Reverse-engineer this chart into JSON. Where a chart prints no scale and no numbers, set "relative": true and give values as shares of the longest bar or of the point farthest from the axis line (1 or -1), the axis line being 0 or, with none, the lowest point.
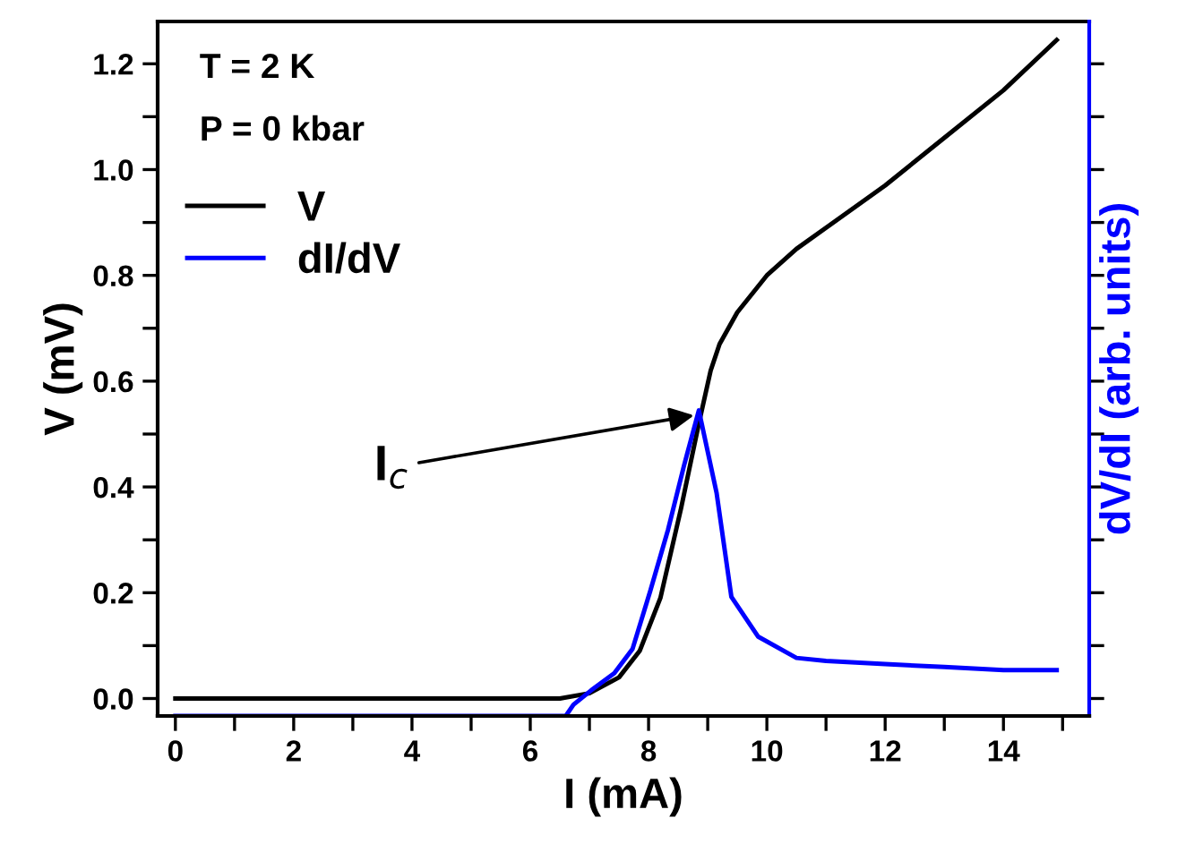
{
  "chart_data": [
    {
      "type": "line",
      "xlabel": "I (mA)",
      "ylabel": "V (mV)",
      "xlim": [
        -0.3,
        15.45
      ],
      "ylim": [
        -0.033,
        1.28
      ],
      "xticks": [
        0,
        {
          "value": 1,
          "label": null
        },
        2,
        {
          "value": 3,
          "label": null
        },
        4,
        {
          "value": 5,
          "label": null
        },
        6,
        {
          "value": 7,
          "label": null
        },
        8,
        {
          "value": 9,
          "label": null
        },
        10,
        {
          "value": 11,
          "label": null
        },
        12,
        {
          "value": 13,
          "label": null
        },
        14,
        {
          "value": 15,
          "label": null
        }
      ],
      "yticks": [
        "0.0",
        {
          "value": 0.1,
          "label": null
        },
        {
          "value": 0.2,
          "label": "0.2"
        },
        {
          "value": 0.3,
          "label": null
        },
        {
          "value": 0.4,
          "label": "0.4"
        },
        {
          "value": 0.5,
          "label": null
        },
        {
          "value": 0.6,
          "label": "0.6"
        },
        {
          "value": 0.7,
          "label": null
        },
        {
          "value": 0.8,
          "label": "0.8"
        },
        {
          "value": 0.9,
          "label": null
        },
        {
          "value": 1.0,
          "label": "1.0"
        },
        {
          "value": 1.1,
          "label": null
        },
        {
          "value": 1.2,
          "label": "1.2"
        }
      ],
      "legend": "top left",
      "grid": false,
      "marker": "none",
      "line_style": "solid",
      "series": [
        {
          "name": "V",
          "color": "#000000",
          "x": [
            0,
            6.5,
            7.0,
            7.5,
            7.85,
            8.2,
            8.55,
            8.85,
            9.05,
            9.2,
            9.5,
            10.0,
            10.5,
            11.0,
            12.0,
            13.0,
            14.0,
            14.9
          ],
          "values": [
            0.0,
            0.0,
            0.01,
            0.04,
            0.09,
            0.19,
            0.36,
            0.52,
            0.62,
            0.67,
            0.73,
            0.8,
            0.85,
            0.89,
            0.97,
            1.06,
            1.15,
            1.245
          ]
        }
      ],
      "annotations": [
        "T = 2 K",
        "P = 0 kbar",
        {
          "text": "I$_{c}$",
          "x": 8.85,
          "y": 0.537
        }
      ]
    },
    {
      "type": "line",
      "ylabel": "dV/dI (arb. units)",
      "relative": true,
      "xlim": [
        -0.3,
        15.45
      ],
      "tick_labels": false,
      "marker": "none",
      "line_style": "solid",
      "series": [
        {
          "name": "dI/dV",
          "color": "#0000ff",
          "x": [
            0,
            1,
            2,
            3,
            4,
            5,
            6,
            6.6,
            6.73,
            7.03,
            7.42,
            7.73,
            8.03,
            8.33,
            8.6,
            8.85,
            9.15,
            9.4,
            9.85,
            10.5,
            11,
            12,
            13,
            14,
            14.9
          ],
          "values": [
            0.0,
            0.0,
            0.0,
            0.0,
            0.0,
            0.0,
            0.0,
            0.0,
            0.037,
            0.084,
            0.14,
            0.22,
            0.41,
            0.61,
            0.82,
            1.0,
            0.73,
            0.39,
            0.26,
            0.19,
            0.18,
            0.17,
            0.16,
            0.15,
            0.15
          ]
        }
      ]
    }
  ]
}
